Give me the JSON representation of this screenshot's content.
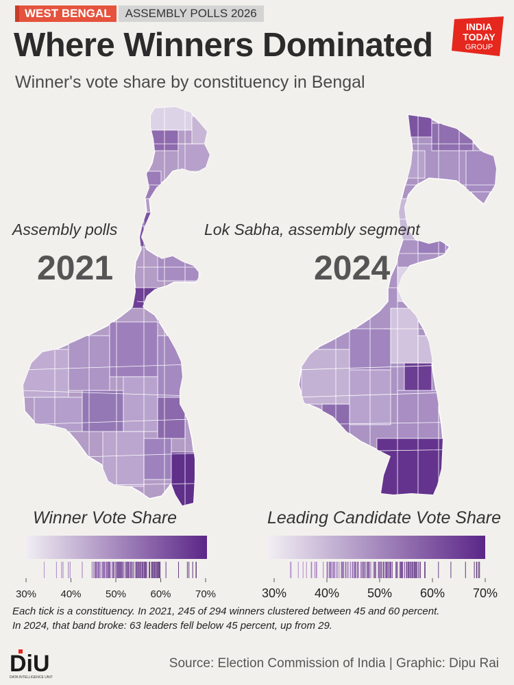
{
  "header": {
    "tag_state": "WEST BENGAL",
    "tag_poll": "ASSEMBLY POLLS 2026",
    "title": "Where Winners Dominated",
    "subtitle": "Winner's vote share by constituency in Bengal"
  },
  "logo": {
    "line1": "INDIA",
    "line2": "TODAY",
    "line3": "GROUP",
    "color": "#e5271e"
  },
  "colors": {
    "low": "#f2eff4",
    "high": "#5b2688"
  },
  "panels": [
    {
      "label": "Assembly polls",
      "year": "2021",
      "legend_title": "Winner Vote Share",
      "ticks": [
        "30%",
        "40%",
        "50%",
        "60%",
        "70%"
      ],
      "tick_values": [
        30,
        40,
        50,
        60,
        70
      ],
      "dense_band": [
        45,
        60
      ]
    },
    {
      "label": "Lok Sabha, assembly segment",
      "year": "2024",
      "legend_title": "Leading Candidate Vote Share",
      "ticks": [
        "30%",
        "40%",
        "50%",
        "60%",
        "70%"
      ],
      "tick_values": [
        30,
        40,
        50,
        60,
        70
      ],
      "dense_band": [
        40,
        58
      ]
    }
  ],
  "caption": {
    "line1": "Each tick is a constituency. In 2021, 245 of 294 winners clustered between 45 and 60 percent.",
    "line2": "In 2024, that band broke: 63 leaders fell below 45 percent, up from 29."
  },
  "footer": {
    "source": "Source: Election Commission of India | Graphic: Dipu Rai",
    "diu_text": "DiU",
    "diu_sub": "DATA INTELLIGENCE UNIT"
  }
}
